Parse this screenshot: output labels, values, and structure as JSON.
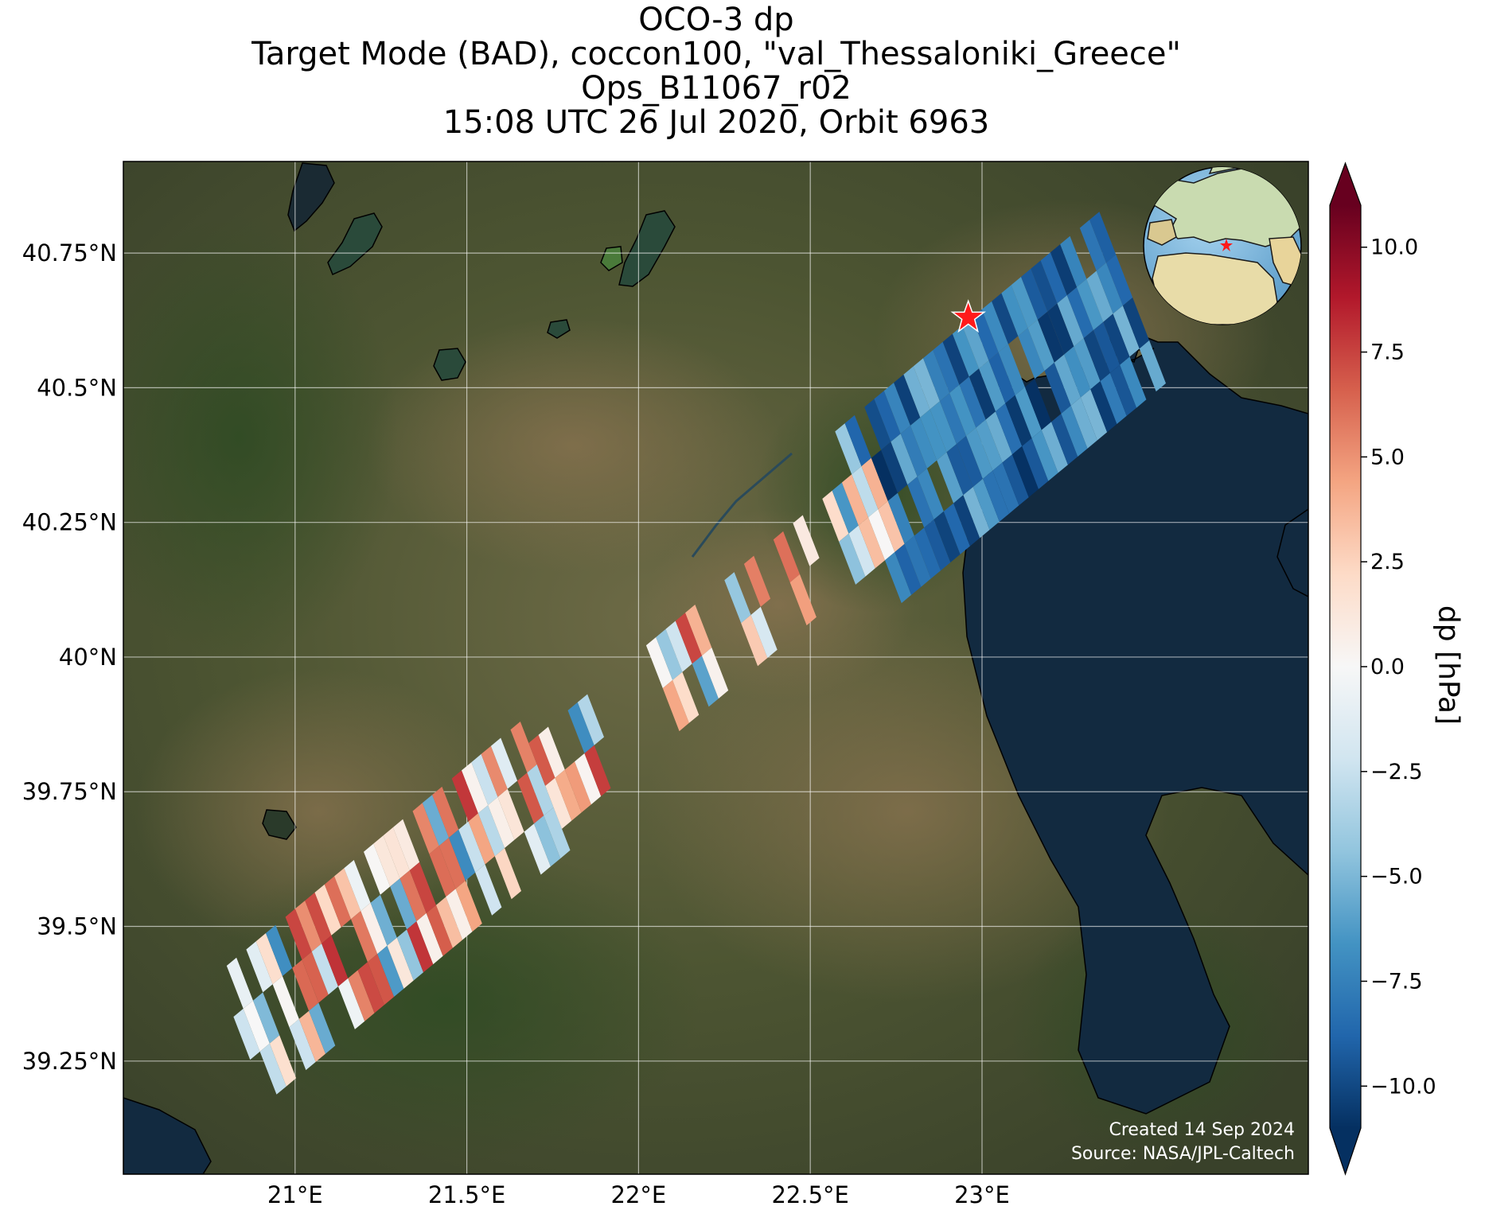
{
  "title": {
    "line1": "OCO-3 dp",
    "line2": "Target Mode (BAD), coccon100, \"val_Thessaloniki_Greece\"",
    "line3": "Ops_B11067_r02",
    "line4": "15:08 UTC 26 Jul 2020, Orbit 6963"
  },
  "map": {
    "lon_range": [
      20.5,
      23.95
    ],
    "lat_range": [
      39.04,
      40.92
    ],
    "lon_ticks": [
      {
        "value": 21.0,
        "label": "21°E"
      },
      {
        "value": 21.5,
        "label": "21.5°E"
      },
      {
        "value": 22.0,
        "label": "22°E"
      },
      {
        "value": 22.5,
        "label": "22.5°E"
      },
      {
        "value": 23.0,
        "label": "23°E"
      }
    ],
    "lat_ticks": [
      {
        "value": 40.75,
        "label": "40.75°N"
      },
      {
        "value": 40.5,
        "label": "40.5°N"
      },
      {
        "value": 40.25,
        "label": "40.25°N"
      },
      {
        "value": 40.0,
        "label": "40°N"
      },
      {
        "value": 39.75,
        "label": "39.75°N"
      },
      {
        "value": 39.5,
        "label": "39.5°N"
      },
      {
        "value": 39.25,
        "label": "39.25°N"
      }
    ],
    "gridlines": true,
    "background": "satellite imagery",
    "target_marker": {
      "lon": 22.96,
      "lat": 40.63,
      "color": "#ff1a1a",
      "icon": "star-icon"
    },
    "inset_globe": {
      "position": "top-right",
      "marker_color": "#ff1a1a"
    }
  },
  "colorbar": {
    "label": "dp [hPa]",
    "range": [
      -11,
      11
    ],
    "extend": "both",
    "colormap": [
      "#053061",
      "#2166ac",
      "#4393c3",
      "#92c5de",
      "#d1e5f0",
      "#f7f7f7",
      "#fddbc7",
      "#f4a582",
      "#d6604d",
      "#b2182b",
      "#67001f"
    ],
    "ticks": [
      {
        "value": 10.0,
        "label": "10.0"
      },
      {
        "value": 7.5,
        "label": "7.5"
      },
      {
        "value": 5.0,
        "label": "5.0"
      },
      {
        "value": 2.5,
        "label": "2.5"
      },
      {
        "value": 0.0,
        "label": "0.0"
      },
      {
        "value": -2.5,
        "label": "−2.5"
      },
      {
        "value": -5.0,
        "label": "−5.0"
      },
      {
        "value": -7.5,
        "label": "−7.5"
      },
      {
        "value": -10.0,
        "label": "−10.0"
      }
    ]
  },
  "credits": {
    "created": "Created 14 Sep 2024",
    "source": "Source: NASA/JPL-Caltech"
  }
}
